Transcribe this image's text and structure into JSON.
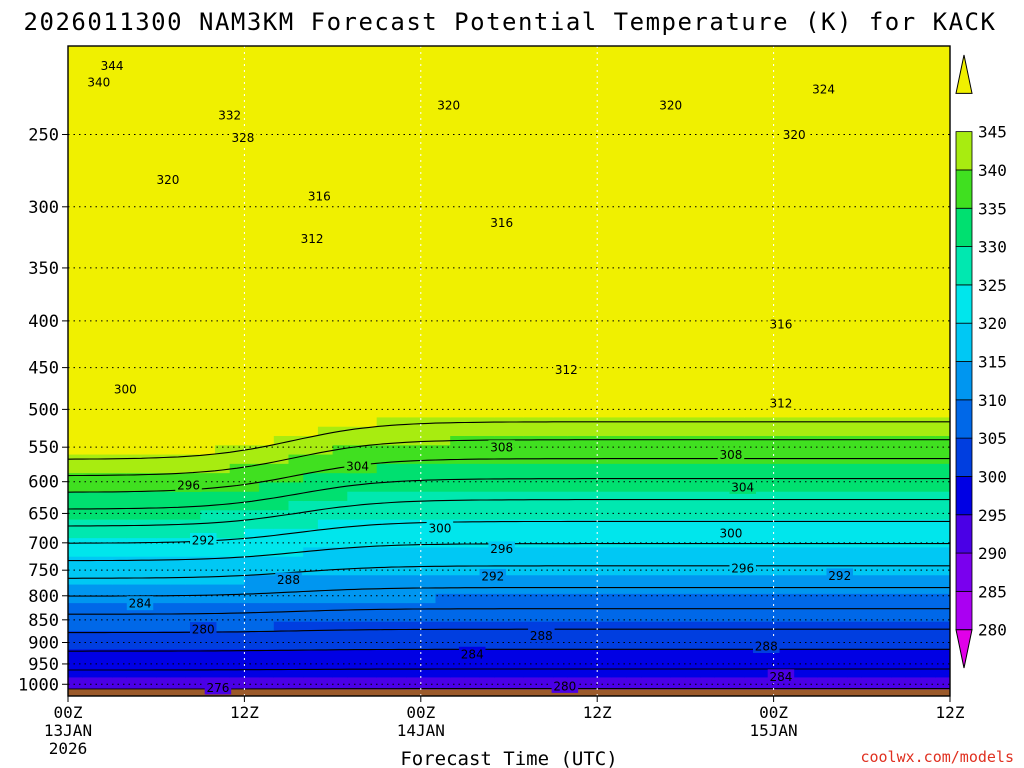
{
  "chart_data": {
    "type": "heatmap",
    "title": "2026011300 NAM3KM Forecast Potential Temperature (K) for KACK",
    "xlabel": "Forecast Time (UTC)",
    "ylabel": "",
    "credit": "coolwx.com/models",
    "x_ticks": [
      {
        "hour": 0,
        "label": "00Z",
        "sub1": "13JAN",
        "sub2": "2026"
      },
      {
        "hour": 12,
        "label": "12Z",
        "sub1": "",
        "sub2": ""
      },
      {
        "hour": 24,
        "label": "00Z",
        "sub1": "14JAN",
        "sub2": ""
      },
      {
        "hour": 36,
        "label": "12Z",
        "sub1": "",
        "sub2": ""
      },
      {
        "hour": 48,
        "label": "00Z",
        "sub1": "15JAN",
        "sub2": ""
      },
      {
        "hour": 60,
        "label": "12Z",
        "sub1": "",
        "sub2": ""
      }
    ],
    "xlim": [
      0,
      60
    ],
    "y_ticks": [
      250,
      300,
      350,
      400,
      450,
      500,
      550,
      600,
      650,
      700,
      750,
      800,
      850,
      900,
      950,
      1000
    ],
    "ylim_hpa": [
      200,
      1030
    ],
    "y_scale": "log-pressure",
    "colorbar": {
      "levels": [
        280,
        285,
        290,
        295,
        300,
        305,
        310,
        315,
        320,
        325,
        330,
        335,
        340,
        345
      ],
      "colors": [
        "#e000e8",
        "#aa00f2",
        "#7a00ee",
        "#4a00e6",
        "#0000e4",
        "#003ee0",
        "#0068e8",
        "#0096f0",
        "#00c8f4",
        "#00e6ec",
        "#00e8b0",
        "#00e070",
        "#40e020",
        "#a8ec10",
        "#f0f000"
      ]
    },
    "contour_interval_K": 4,
    "contour_labels": [
      {
        "value": 344,
        "hour": 3.0,
        "p": 210
      },
      {
        "value": 340,
        "hour": 2.1,
        "p": 219
      },
      {
        "value": 332,
        "hour": 11.0,
        "p": 238
      },
      {
        "value": 328,
        "hour": 11.9,
        "p": 252
      },
      {
        "value": 320,
        "hour": 6.8,
        "p": 280
      },
      {
        "value": 316,
        "hour": 17.1,
        "p": 292
      },
      {
        "value": 312,
        "hour": 16.6,
        "p": 325
      },
      {
        "value": 300,
        "hour": 3.9,
        "p": 475
      },
      {
        "value": 296,
        "hour": 8.2,
        "p": 605
      },
      {
        "value": 292,
        "hour": 9.2,
        "p": 695
      },
      {
        "value": 288,
        "hour": 15.0,
        "p": 768
      },
      {
        "value": 284,
        "hour": 4.9,
        "p": 815
      },
      {
        "value": 280,
        "hour": 9.2,
        "p": 870
      },
      {
        "value": 276,
        "hour": 10.2,
        "p": 1008
      },
      {
        "value": 320,
        "hour": 25.9,
        "p": 232
      },
      {
        "value": 316,
        "hour": 29.5,
        "p": 312
      },
      {
        "value": 304,
        "hour": 19.7,
        "p": 577
      },
      {
        "value": 300,
        "hour": 25.3,
        "p": 674
      },
      {
        "value": 296,
        "hour": 29.5,
        "p": 710
      },
      {
        "value": 292,
        "hour": 28.9,
        "p": 761
      },
      {
        "value": 284,
        "hour": 27.5,
        "p": 926
      },
      {
        "value": 312,
        "hour": 33.9,
        "p": 452
      },
      {
        "value": 308,
        "hour": 29.5,
        "p": 550
      },
      {
        "value": 288,
        "hour": 32.2,
        "p": 884
      },
      {
        "value": 280,
        "hour": 33.8,
        "p": 1004
      },
      {
        "value": 320,
        "hour": 41.0,
        "p": 232
      },
      {
        "value": 324,
        "hour": 51.4,
        "p": 223
      },
      {
        "value": 320,
        "hour": 49.4,
        "p": 250
      },
      {
        "value": 316,
        "hour": 48.5,
        "p": 403
      },
      {
        "value": 312,
        "hour": 48.5,
        "p": 492
      },
      {
        "value": 308,
        "hour": 45.1,
        "p": 560
      },
      {
        "value": 304,
        "hour": 45.9,
        "p": 608
      },
      {
        "value": 300,
        "hour": 45.1,
        "p": 683
      },
      {
        "value": 296,
        "hour": 45.9,
        "p": 746
      },
      {
        "value": 292,
        "hour": 52.5,
        "p": 760
      },
      {
        "value": 288,
        "hour": 47.5,
        "p": 908
      },
      {
        "value": 284,
        "hour": 48.5,
        "p": 980
      }
    ],
    "terrain_color": "#9b5a2a"
  }
}
